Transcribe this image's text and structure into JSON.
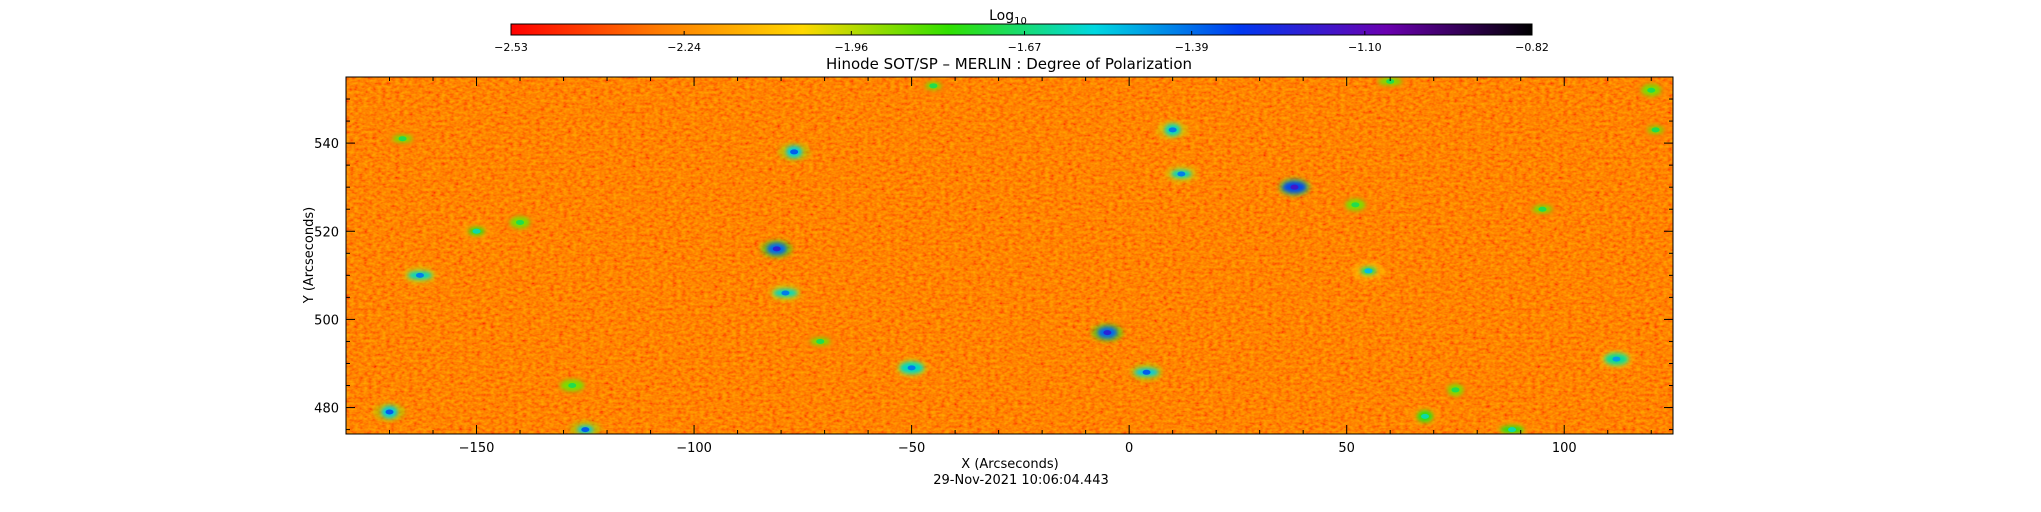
{
  "chart_data": {
    "type": "heatmap",
    "title": "Hinode SOT/SP – MERLIN : Degree of Polarization",
    "xlabel": "X (Arcseconds)",
    "ylabel": "Y (Arcseconds)",
    "xlim": [
      -180,
      125
    ],
    "ylim": [
      474,
      555
    ],
    "xticks": [
      -150,
      -100,
      -50,
      0,
      50,
      100
    ],
    "xtick_labels": [
      "−150",
      "−100",
      "−50",
      "0",
      "50",
      "100"
    ],
    "yticks": [
      480,
      500,
      520,
      540
    ],
    "ytick_labels": [
      "480",
      "500",
      "520",
      "540"
    ],
    "timestamp": "29-Nov-2021 10:06:04.443",
    "colorbar": {
      "label_main": "Log",
      "label_sub": "10",
      "range": [
        -2.53,
        -0.82
      ],
      "ticks": [
        -2.53,
        -2.24,
        -1.96,
        -1.67,
        -1.39,
        -1.1,
        -0.82
      ],
      "tick_labels": [
        "−2.53",
        "−2.24",
        "−1.96",
        "−1.67",
        "−1.39",
        "−1.10",
        "−0.82"
      ],
      "colors": [
        "#ff0000",
        "#ff7a00",
        "#ffd800",
        "#30e000",
        "#00d8e0",
        "#0038f0",
        "#6a00b0",
        "#000000"
      ]
    },
    "background_level": -2.42,
    "features": [
      {
        "x": -150,
        "y": 520,
        "level": -1.7
      },
      {
        "x": -140,
        "y": 522,
        "level": -1.8
      },
      {
        "x": -163,
        "y": 510,
        "level": -1.5
      },
      {
        "x": -170,
        "y": 479,
        "level": -1.45
      },
      {
        "x": -167,
        "y": 541,
        "level": -1.8
      },
      {
        "x": -128,
        "y": 485,
        "level": -1.8
      },
      {
        "x": -125,
        "y": 475,
        "level": -1.45
      },
      {
        "x": -81,
        "y": 516,
        "level": -1.3
      },
      {
        "x": -79,
        "y": 506,
        "level": -1.5
      },
      {
        "x": -77,
        "y": 538,
        "level": -1.45
      },
      {
        "x": -71,
        "y": 495,
        "level": -1.8
      },
      {
        "x": -50,
        "y": 489,
        "level": -1.5
      },
      {
        "x": -45,
        "y": 553,
        "level": -1.8
      },
      {
        "x": -5,
        "y": 497,
        "level": -1.3
      },
      {
        "x": 4,
        "y": 488,
        "level": -1.45
      },
      {
        "x": 10,
        "y": 543,
        "level": -1.5
      },
      {
        "x": 12,
        "y": 533,
        "level": -1.5
      },
      {
        "x": 38,
        "y": 530,
        "level": -1.25
      },
      {
        "x": 55,
        "y": 511,
        "level": -1.6
      },
      {
        "x": 52,
        "y": 526,
        "level": -1.8
      },
      {
        "x": 88,
        "y": 475,
        "level": -1.7
      },
      {
        "x": 75,
        "y": 484,
        "level": -1.8
      },
      {
        "x": 95,
        "y": 525,
        "level": -1.8
      },
      {
        "x": 112,
        "y": 491,
        "level": -1.55
      },
      {
        "x": 121,
        "y": 543,
        "level": -1.8
      },
      {
        "x": 120,
        "y": 552,
        "level": -1.8
      },
      {
        "x": 60,
        "y": 554,
        "level": -1.8
      },
      {
        "x": 68,
        "y": 478,
        "level": -1.7
      }
    ]
  }
}
